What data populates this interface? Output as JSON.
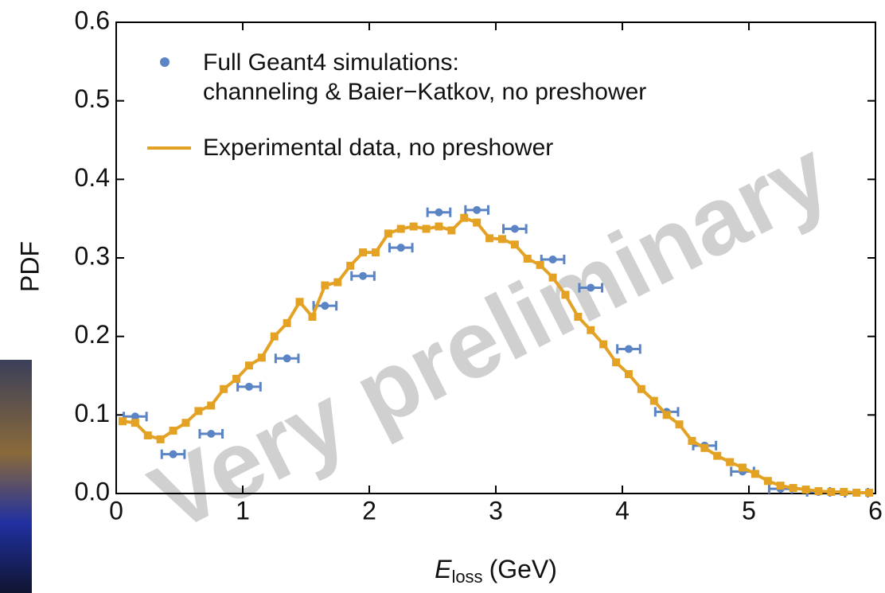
{
  "chart_data": {
    "type": "line",
    "watermark": "Very preliminary",
    "ylabel": "PDF",
    "xlabel": {
      "symbol": "E",
      "subscript": "loss",
      "unit": "(GeV)"
    },
    "xlim": [
      0,
      6
    ],
    "xticks": [
      0,
      1,
      2,
      3,
      4,
      5,
      6
    ],
    "ylim": [
      0,
      0.6
    ],
    "yticks": [
      {
        "value": 0,
        "label": "0.0"
      },
      0.1,
      0.2,
      0.3,
      0.4,
      0.5,
      0.6
    ],
    "series": [
      {
        "name": "Full Geant4 simulations:\nchanneling & Baier−Katkov, no preshower",
        "kind": "points",
        "color": "#5b84c4",
        "x": [
          0.15,
          0.45,
          0.75,
          1.05,
          1.35,
          1.65,
          1.95,
          2.25,
          2.55,
          2.85,
          3.15,
          3.45,
          3.75,
          4.05,
          4.35,
          4.65,
          4.95,
          5.25,
          5.55,
          5.85
        ],
        "values": [
          0.098,
          0.05,
          0.076,
          0.136,
          0.172,
          0.239,
          0.277,
          0.313,
          0.358,
          0.361,
          0.337,
          0.298,
          0.262,
          0.184,
          0.104,
          0.061,
          0.028,
          0.006,
          0.002,
          0.001
        ],
        "xerr": 0.09
      },
      {
        "name": "Experimental data, no preshower",
        "kind": "line",
        "color": "#e3a224",
        "x": [
          0.05,
          0.15,
          0.25,
          0.35,
          0.45,
          0.55,
          0.65,
          0.75,
          0.85,
          0.95,
          1.05,
          1.15,
          1.25,
          1.35,
          1.45,
          1.55,
          1.65,
          1.75,
          1.85,
          1.95,
          2.05,
          2.15,
          2.25,
          2.35,
          2.45,
          2.55,
          2.65,
          2.75,
          2.85,
          2.95,
          3.05,
          3.15,
          3.25,
          3.35,
          3.45,
          3.55,
          3.65,
          3.75,
          3.85,
          3.95,
          4.05,
          4.15,
          4.25,
          4.35,
          4.45,
          4.55,
          4.65,
          4.75,
          4.85,
          4.95,
          5.05,
          5.15,
          5.25,
          5.35,
          5.45,
          5.55,
          5.65,
          5.75,
          5.85,
          5.95
        ],
        "values": [
          0.092,
          0.09,
          0.074,
          0.069,
          0.08,
          0.09,
          0.105,
          0.112,
          0.133,
          0.146,
          0.163,
          0.173,
          0.2,
          0.217,
          0.244,
          0.225,
          0.265,
          0.269,
          0.29,
          0.307,
          0.307,
          0.331,
          0.337,
          0.34,
          0.337,
          0.34,
          0.335,
          0.351,
          0.345,
          0.325,
          0.324,
          0.317,
          0.299,
          0.291,
          0.275,
          0.253,
          0.225,
          0.208,
          0.19,
          0.167,
          0.152,
          0.133,
          0.118,
          0.1,
          0.088,
          0.067,
          0.058,
          0.048,
          0.04,
          0.033,
          0.025,
          0.016,
          0.01,
          0.007,
          0.005,
          0.003,
          0.002,
          0.002,
          0.001,
          0.001
        ]
      }
    ]
  }
}
